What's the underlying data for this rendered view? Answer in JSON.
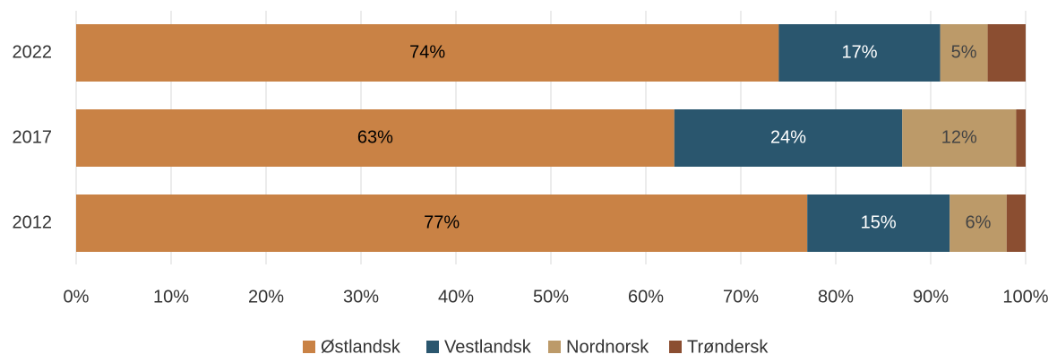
{
  "chart_data": {
    "type": "stacked-bar-horizontal",
    "categories": [
      "2022",
      "2017",
      "2012"
    ],
    "series": [
      {
        "name": "Østlandsk",
        "color": "#c98245",
        "values": [
          74,
          63,
          77
        ],
        "value_labels": [
          "74%",
          "63%",
          "77%"
        ]
      },
      {
        "name": "Vestlandsk",
        "color": "#2a566e",
        "values": [
          17,
          24,
          15
        ],
        "value_labels": [
          "17%",
          "24%",
          "15%"
        ]
      },
      {
        "name": "Nordnorsk",
        "color": "#bc9a69",
        "values": [
          5,
          12,
          6
        ],
        "value_labels": [
          "5%",
          "12%",
          "6%"
        ]
      },
      {
        "name": "Trøndersk",
        "color": "#8b4e31",
        "values": [
          4,
          1,
          2
        ]
      }
    ],
    "xlim": [
      0,
      100
    ],
    "xticks": [
      {
        "value": 0,
        "label": "0%"
      },
      {
        "value": 10,
        "label": "10%"
      },
      {
        "value": 20,
        "label": "20%"
      },
      {
        "value": 30,
        "label": "30%"
      },
      {
        "value": 40,
        "label": "40%"
      },
      {
        "value": 50,
        "label": "50%"
      },
      {
        "value": 60,
        "label": "60%"
      },
      {
        "value": 70,
        "label": "70%"
      },
      {
        "value": 80,
        "label": "80%"
      },
      {
        "value": 90,
        "label": "90%"
      },
      {
        "value": 100,
        "label": "100%"
      }
    ],
    "grid": true,
    "legend": "bottom"
  }
}
